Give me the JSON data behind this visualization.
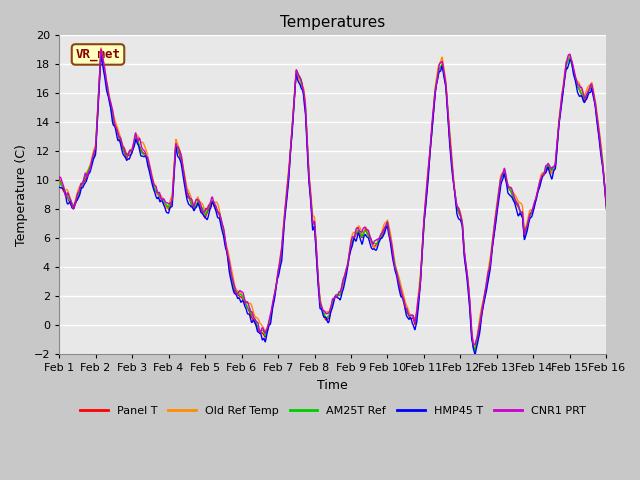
{
  "title": "Temperatures",
  "xlabel": "Time",
  "ylabel": "Temperature (C)",
  "ylim": [
    -2,
    20
  ],
  "yticks": [
    -2,
    0,
    2,
    4,
    6,
    8,
    10,
    12,
    14,
    16,
    18,
    20
  ],
  "xtick_labels": [
    "Feb 1",
    "Feb 2",
    "Feb 3",
    "Feb 4",
    "Feb 5",
    "Feb 6",
    "Feb 7",
    "Feb 8",
    "Feb 9",
    "Feb 10",
    "Feb 11",
    "Feb 12",
    "Feb 13",
    "Feb 14",
    "Feb 15",
    "Feb 16"
  ],
  "legend_labels": [
    "Panel T",
    "Old Ref Temp",
    "AM25T Ref",
    "HMP45 T",
    "CNR1 PRT"
  ],
  "legend_colors": [
    "#ff0000",
    "#ff8c00",
    "#00cc00",
    "#0000ff",
    "#cc00cc"
  ],
  "annotation_text": "VR_met",
  "plot_bg_color": "#e8e8e8",
  "grid_color": "#ffffff",
  "line_width": 1.0,
  "title_fontsize": 11
}
